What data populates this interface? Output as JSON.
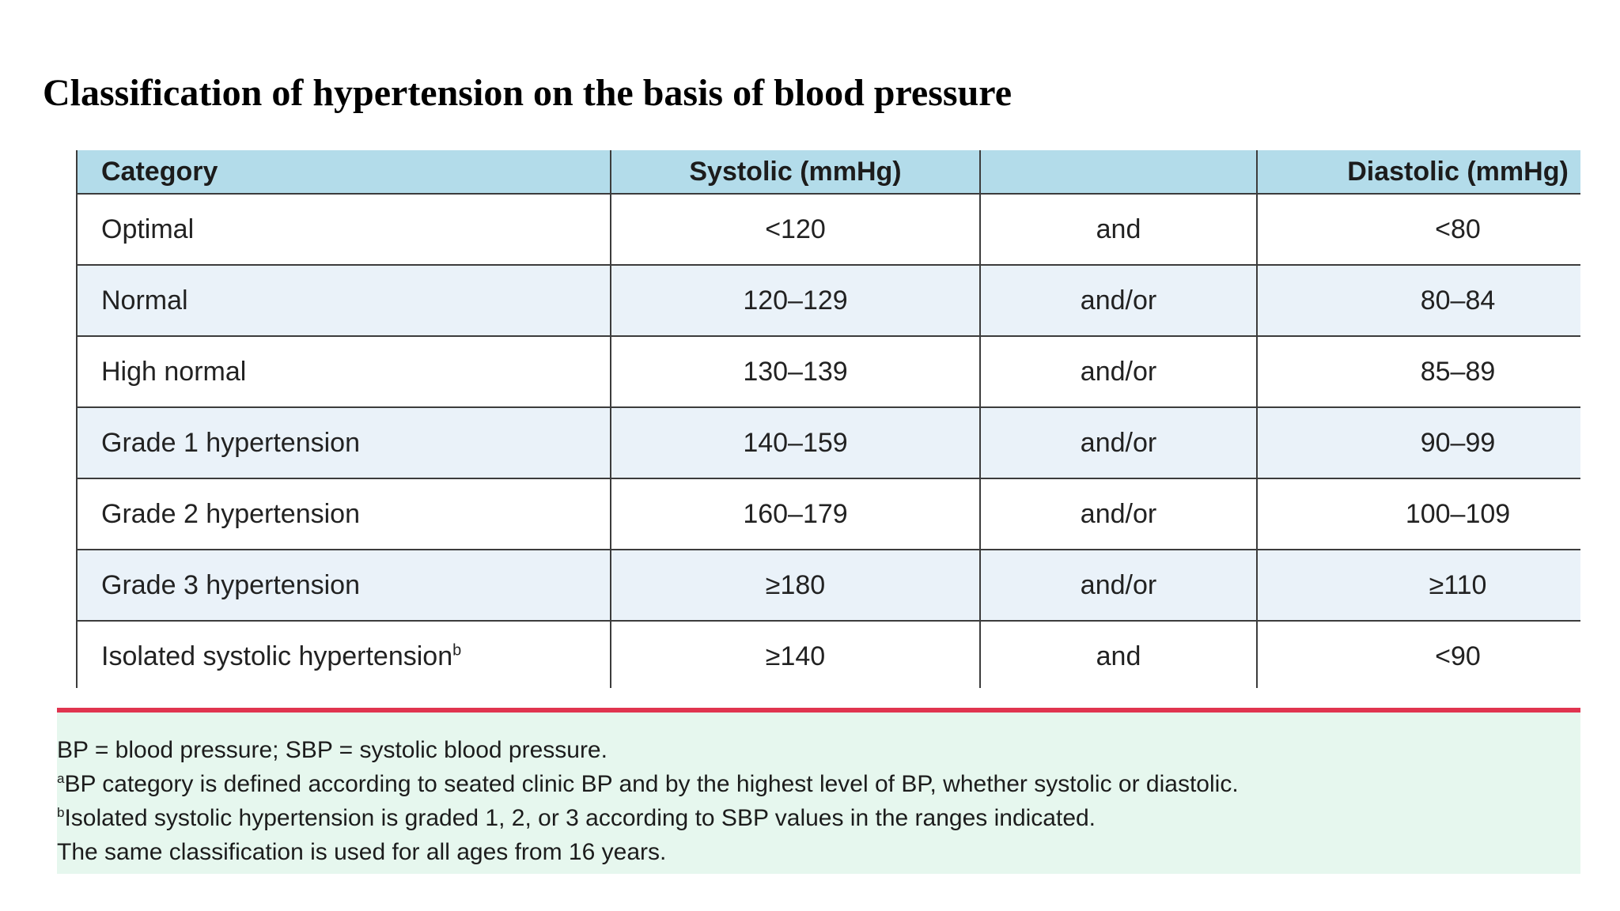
{
  "title": "Classification of hypertension on the basis of blood pressure",
  "table": {
    "headers": {
      "category": "Category",
      "systolic": "Systolic (mmHg)",
      "connector": "",
      "diastolic": "Diastolic (mmHg)"
    },
    "rows": [
      {
        "category": "Optimal",
        "category_sup": "",
        "systolic": "<120",
        "connector": "and",
        "diastolic": "<80"
      },
      {
        "category": "Normal",
        "category_sup": "",
        "systolic": "120–129",
        "connector": "and/or",
        "diastolic": "80–84"
      },
      {
        "category": "High normal",
        "category_sup": "",
        "systolic": "130–139",
        "connector": "and/or",
        "diastolic": "85–89"
      },
      {
        "category": "Grade 1 hypertension",
        "category_sup": "",
        "systolic": "140–159",
        "connector": "and/or",
        "diastolic": "90–99"
      },
      {
        "category": "Grade 2 hypertension",
        "category_sup": "",
        "systolic": "160–179",
        "connector": "and/or",
        "diastolic": "100–109"
      },
      {
        "category": "Grade 3 hypertension",
        "category_sup": "",
        "systolic": "≥180",
        "connector": "and/or",
        "diastolic": "≥110"
      },
      {
        "category": "Isolated systolic hypertension",
        "category_sup": "b",
        "systolic": "≥140",
        "connector": "and",
        "diastolic": "<90"
      }
    ]
  },
  "notes": [
    {
      "sup": "",
      "text": "BP = blood pressure; SBP = systolic blood pressure."
    },
    {
      "sup": "a",
      "text": "BP category is defined according to seated clinic BP and by the highest level of BP, whether systolic or diastolic."
    },
    {
      "sup": "b",
      "text": "Isolated systolic hypertension is graded 1, 2, or 3 according to SBP values in the ranges indicated."
    },
    {
      "sup": "",
      "text": "The same classification is used for all ages from 16 years."
    }
  ],
  "colors": {
    "header_bg": "#b3dcea",
    "row_alt_bg": "#eaf2f9",
    "rule_red": "#e0344f",
    "notes_bg": "#e6f7ee"
  }
}
